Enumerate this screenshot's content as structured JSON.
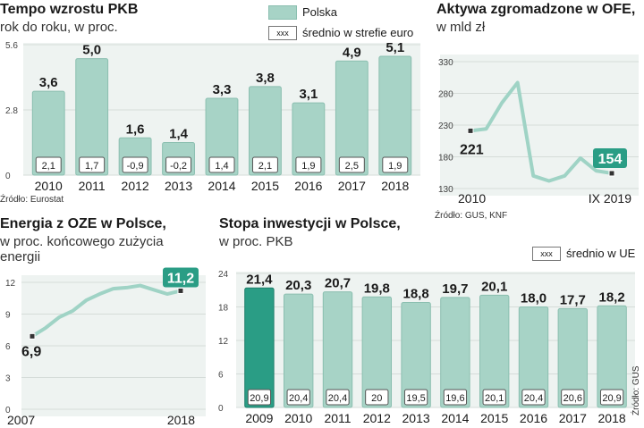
{
  "colors": {
    "bar": "#a7d3c6",
    "bar_stroke": "#8bbfb0",
    "highlight": "#2a9d85",
    "panel": "#eef3f1",
    "line": "#9fd3c5"
  },
  "legend": {
    "polska": "Polska",
    "euro_sample": "xxx",
    "euro_label": "średnio w strefie euro",
    "ue_sample": "xxx",
    "ue_label": "średnio w UE"
  },
  "pkb": {
    "title": "Tempo wzrostu PKB",
    "subtitle": "rok do roku, w proc.",
    "source": "Źródło: Eurostat",
    "chart_data": {
      "type": "bar",
      "title": "Tempo wzrostu PKB",
      "ylabel": "rok do roku, w proc.",
      "ylim": [
        0,
        5.6
      ],
      "yticks": [
        "5.6",
        "2.8",
        "0"
      ],
      "categories": [
        "2010",
        "2011",
        "2012",
        "2013",
        "2014",
        "2015",
        "2016",
        "2017",
        "2018"
      ],
      "series": [
        {
          "name": "Polska",
          "values": [
            3.6,
            5.0,
            1.6,
            1.4,
            3.3,
            3.8,
            3.1,
            4.9,
            5.1
          ],
          "labels": [
            "3,6",
            "5,0",
            "1,6",
            "1,4",
            "3,3",
            "3,8",
            "3,1",
            "4,9",
            "5,1"
          ]
        },
        {
          "name": "średnio w strefie euro",
          "values": [
            2.1,
            1.7,
            -0.9,
            -0.2,
            1.4,
            2.1,
            1.9,
            2.5,
            1.9
          ],
          "labels": [
            "2,1",
            "1,7",
            "-0,9",
            "-0,2",
            "1,4",
            "2,1",
            "1,9",
            "2,5",
            "1,9"
          ]
        }
      ]
    }
  },
  "ofe": {
    "title": "Aktywa zgromadzone w OFE,",
    "subtitle": "w mld zł",
    "source": "Źródło: GUS, KNF",
    "chart_data": {
      "type": "line",
      "title": "Aktywa zgromadzone w OFE",
      "ylabel": "w mld zł",
      "ylim": [
        130,
        330
      ],
      "yticks": [
        "330",
        "280",
        "230",
        "180",
        "130"
      ],
      "x_labels": [
        "2010",
        "IX 2019"
      ],
      "values": [
        221,
        224,
        265,
        297,
        150,
        142,
        150,
        178,
        158,
        154
      ],
      "start_label": "221",
      "end_label": "154"
    }
  },
  "oze": {
    "title": "Energia z OZE  w Polsce,",
    "subtitle1": "w proc. końcowego zużycia",
    "subtitle2": "energii",
    "chart_data": {
      "type": "line",
      "title": "Energia z OZE w Polsce",
      "ylabel": "w proc. końcowego zużycia energii",
      "ylim": [
        0,
        12
      ],
      "yticks": [
        "12",
        "9",
        "6",
        "3",
        "0"
      ],
      "x_labels": [
        "2007",
        "2018"
      ],
      "values": [
        6.9,
        7.7,
        8.7,
        9.3,
        10.3,
        10.9,
        11.4,
        11.5,
        11.7,
        11.3,
        10.9,
        11.2
      ],
      "start_label": "6,9",
      "end_label": "11,2"
    }
  },
  "inw": {
    "title": "Stopa inwestycji w Polsce,",
    "subtitle": "w proc. PKB",
    "source": "Źródło: GUS",
    "chart_data": {
      "type": "bar",
      "title": "Stopa inwestycji w Polsce",
      "ylabel": "w proc. PKB",
      "ylim": [
        0,
        24
      ],
      "yticks": [
        "24",
        "18",
        "12",
        "6",
        "0"
      ],
      "categories": [
        "2009",
        "2010",
        "2011",
        "2012",
        "2013",
        "2014",
        "2015",
        "2016",
        "2017",
        "2018"
      ],
      "series": [
        {
          "name": "Polska",
          "values": [
            21.4,
            20.3,
            20.7,
            19.8,
            18.8,
            19.7,
            20.1,
            18.0,
            17.7,
            18.2
          ],
          "labels": [
            "21,4",
            "20,3",
            "20,7",
            "19,8",
            "18,8",
            "19,7",
            "20,1",
            "18,0",
            "17,7",
            "18,2"
          ]
        },
        {
          "name": "średnio w UE",
          "values": [
            20.9,
            20.4,
            20.4,
            20,
            19.5,
            19.6,
            20.1,
            20.4,
            20.6,
            20.9
          ],
          "labels": [
            "20,9",
            "20,4",
            "20,4",
            "20",
            "19,5",
            "19,6",
            "20,1",
            "20,4",
            "20,6",
            "20,9"
          ]
        }
      ]
    }
  }
}
